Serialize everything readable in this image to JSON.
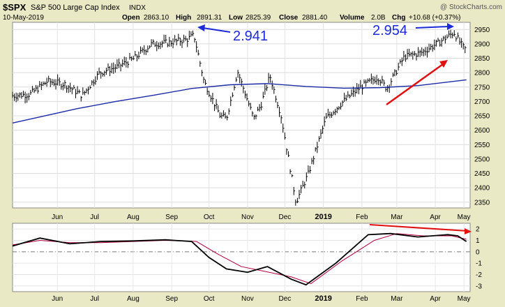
{
  "header": {
    "symbol": "$SPX",
    "name": "S&P 500 Large Cap Index",
    "exchange": "INDX",
    "watermark": "@ StockCharts.com",
    "date": "10-May-2019",
    "open_label": "Open",
    "open_value": "2863.10",
    "high_label": "High",
    "high_value": "2891.31",
    "low_label": "Low",
    "low_value": "2825.39",
    "close_label": "Close",
    "close_value": "2881.40",
    "volume_label": "Volume",
    "volume_value": "2.0B",
    "chg_label": "Chg",
    "chg_value": "+10.68 (+0.37%)"
  },
  "colors": {
    "panel_bg": "#ffffff",
    "frame_bg": "#e9e9c6",
    "price": "#000000",
    "moving_average": "#1c2aa5",
    "indicator_main": "#000000",
    "indicator_signal": "#b0003a",
    "annotation_blue": "#1c2ad8",
    "annotation_red": "#e01010",
    "grid": "#d9d9d9"
  },
  "chart_data": [
    {
      "type": "line",
      "panel": "price",
      "y_ticks": [
        2350,
        2400,
        2450,
        2500,
        2550,
        2600,
        2650,
        2700,
        2750,
        2800,
        2850,
        2900,
        2950
      ],
      "ylim": [
        2330,
        2975
      ],
      "x_ticks": [
        "Jun",
        "Jul",
        "Aug",
        "Sep",
        "Oct",
        "Nov",
        "Dec",
        "2019",
        "Feb",
        "Mar",
        "Apr",
        "May"
      ],
      "grid": true,
      "series": [
        {
          "style": "ohlc-bars",
          "x": [
            "2018-05-10",
            "2018-05-24",
            "2018-06-07",
            "2018-06-21",
            "2018-07-05",
            "2018-07-19",
            "2018-08-02",
            "2018-08-16",
            "2018-08-30",
            "2018-09-13",
            "2018-09-27",
            "2018-10-03",
            "2018-10-11",
            "2018-10-24",
            "2018-10-29",
            "2018-11-07",
            "2018-11-20",
            "2018-11-26",
            "2018-12-03",
            "2018-12-12",
            "2018-12-24",
            "2019-01-03",
            "2019-01-17",
            "2019-01-31",
            "2019-02-14",
            "2019-02-28",
            "2019-03-07",
            "2019-03-21",
            "2019-04-04",
            "2019-04-18",
            "2019-04-30",
            "2019-05-07",
            "2019-05-10"
          ],
          "values": [
            2720,
            2725,
            2770,
            2760,
            2720,
            2800,
            2820,
            2850,
            2900,
            2905,
            2915,
            2930,
            2770,
            2650,
            2640,
            2805,
            2640,
            2690,
            2790,
            2650,
            2350,
            2450,
            2640,
            2700,
            2750,
            2785,
            2745,
            2855,
            2870,
            2905,
            2940,
            2890,
            2880
          ]
        },
        {
          "style": "line",
          "x": [
            "2018-05-10",
            "2018-07-01",
            "2018-08-01",
            "2018-09-01",
            "2018-10-01",
            "2018-11-01",
            "2018-12-01",
            "2019-01-01",
            "2019-02-01",
            "2019-03-01",
            "2019-04-01",
            "2019-05-10"
          ],
          "values": [
            2625,
            2675,
            2700,
            2722,
            2745,
            2758,
            2762,
            2752,
            2746,
            2748,
            2755,
            2775
          ]
        }
      ],
      "annotations": [
        {
          "text": "2.941",
          "color": "blue"
        },
        {
          "text": "2.954",
          "color": "blue"
        }
      ]
    },
    {
      "type": "line",
      "panel": "indicator",
      "y_ticks": [
        2,
        1,
        0,
        -1,
        -2,
        -3
      ],
      "ylim": [
        -3.5,
        2.5
      ],
      "x_ticks": [
        "Jun",
        "Jul",
        "Aug",
        "Sep",
        "Oct",
        "Nov",
        "Dec",
        "2019",
        "Feb",
        "Mar",
        "Apr",
        "May"
      ],
      "grid": true,
      "series": [
        {
          "style": "main",
          "x": [
            "2018-05-10",
            "2018-06-01",
            "2018-06-25",
            "2018-07-20",
            "2018-08-15",
            "2018-09-10",
            "2018-10-01",
            "2018-10-15",
            "2018-10-29",
            "2018-11-15",
            "2018-12-01",
            "2018-12-20",
            "2019-01-01",
            "2019-01-25",
            "2019-02-20",
            "2019-03-10",
            "2019-04-01",
            "2019-04-25",
            "2019-05-03",
            "2019-05-10"
          ],
          "values": [
            0.5,
            1.2,
            0.7,
            0.9,
            0.95,
            1.05,
            0.9,
            -0.5,
            -1.5,
            -1.8,
            -1.3,
            -2.4,
            -2.9,
            -1.0,
            1.5,
            1.6,
            1.3,
            1.5,
            1.4,
            0.9
          ]
        },
        {
          "style": "signal",
          "x": [
            "2018-05-10",
            "2018-06-01",
            "2018-06-25",
            "2018-07-20",
            "2018-08-15",
            "2018-09-10",
            "2018-10-05",
            "2018-10-22",
            "2018-11-10",
            "2018-11-28",
            "2018-12-20",
            "2019-01-05",
            "2019-01-30",
            "2019-02-25",
            "2019-03-15",
            "2019-04-05",
            "2019-04-28",
            "2019-05-10"
          ],
          "values": [
            0.6,
            1.0,
            0.8,
            0.8,
            0.9,
            1.0,
            0.9,
            -0.2,
            -1.3,
            -1.7,
            -2.2,
            -2.8,
            -0.8,
            1.0,
            1.6,
            1.4,
            1.4,
            1.1
          ]
        }
      ]
    }
  ]
}
